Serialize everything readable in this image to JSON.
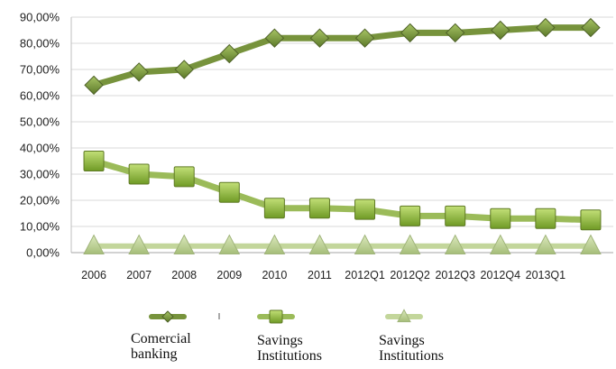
{
  "chart_data": {
    "type": "line",
    "categories": [
      "2006",
      "2007",
      "2008",
      "2009",
      "2010",
      "2011",
      "2012Q1",
      "2012Q2",
      "2012Q3",
      "2012Q4",
      "2013Q1",
      ""
    ],
    "ylim": [
      0,
      90
    ],
    "yticks": [
      "0,00%",
      "10,00%",
      "20,00%",
      "30,00%",
      "40,00%",
      "50,00%",
      "60,00%",
      "70,00%",
      "80,00%",
      "90,00%"
    ],
    "grid": true,
    "legend_position": "bottom",
    "series": [
      {
        "name": "Comercial banking",
        "marker": "diamond",
        "color": "#77933c",
        "values": [
          64,
          69,
          70,
          76,
          82,
          82,
          82,
          84,
          84,
          85,
          86,
          86
        ]
      },
      {
        "name": "Savings Institutions",
        "marker": "square",
        "color": "#9bbb59",
        "values": [
          35,
          30,
          29,
          23,
          17,
          17,
          16.5,
          14,
          14,
          13,
          13,
          12.5
        ]
      },
      {
        "name": "Savings Institutions",
        "marker": "triangle",
        "color": "#c3d69b",
        "values": [
          2.5,
          2.5,
          2.5,
          2.5,
          2.5,
          2.5,
          2.5,
          2.5,
          2.5,
          2.5,
          2.5,
          2.5
        ]
      }
    ]
  },
  "legend": {
    "items": [
      {
        "label": "Comercial\nbanking"
      },
      {
        "label": "Savings\nInstitutions"
      },
      {
        "label": "Savings\nInstitutions"
      }
    ]
  }
}
